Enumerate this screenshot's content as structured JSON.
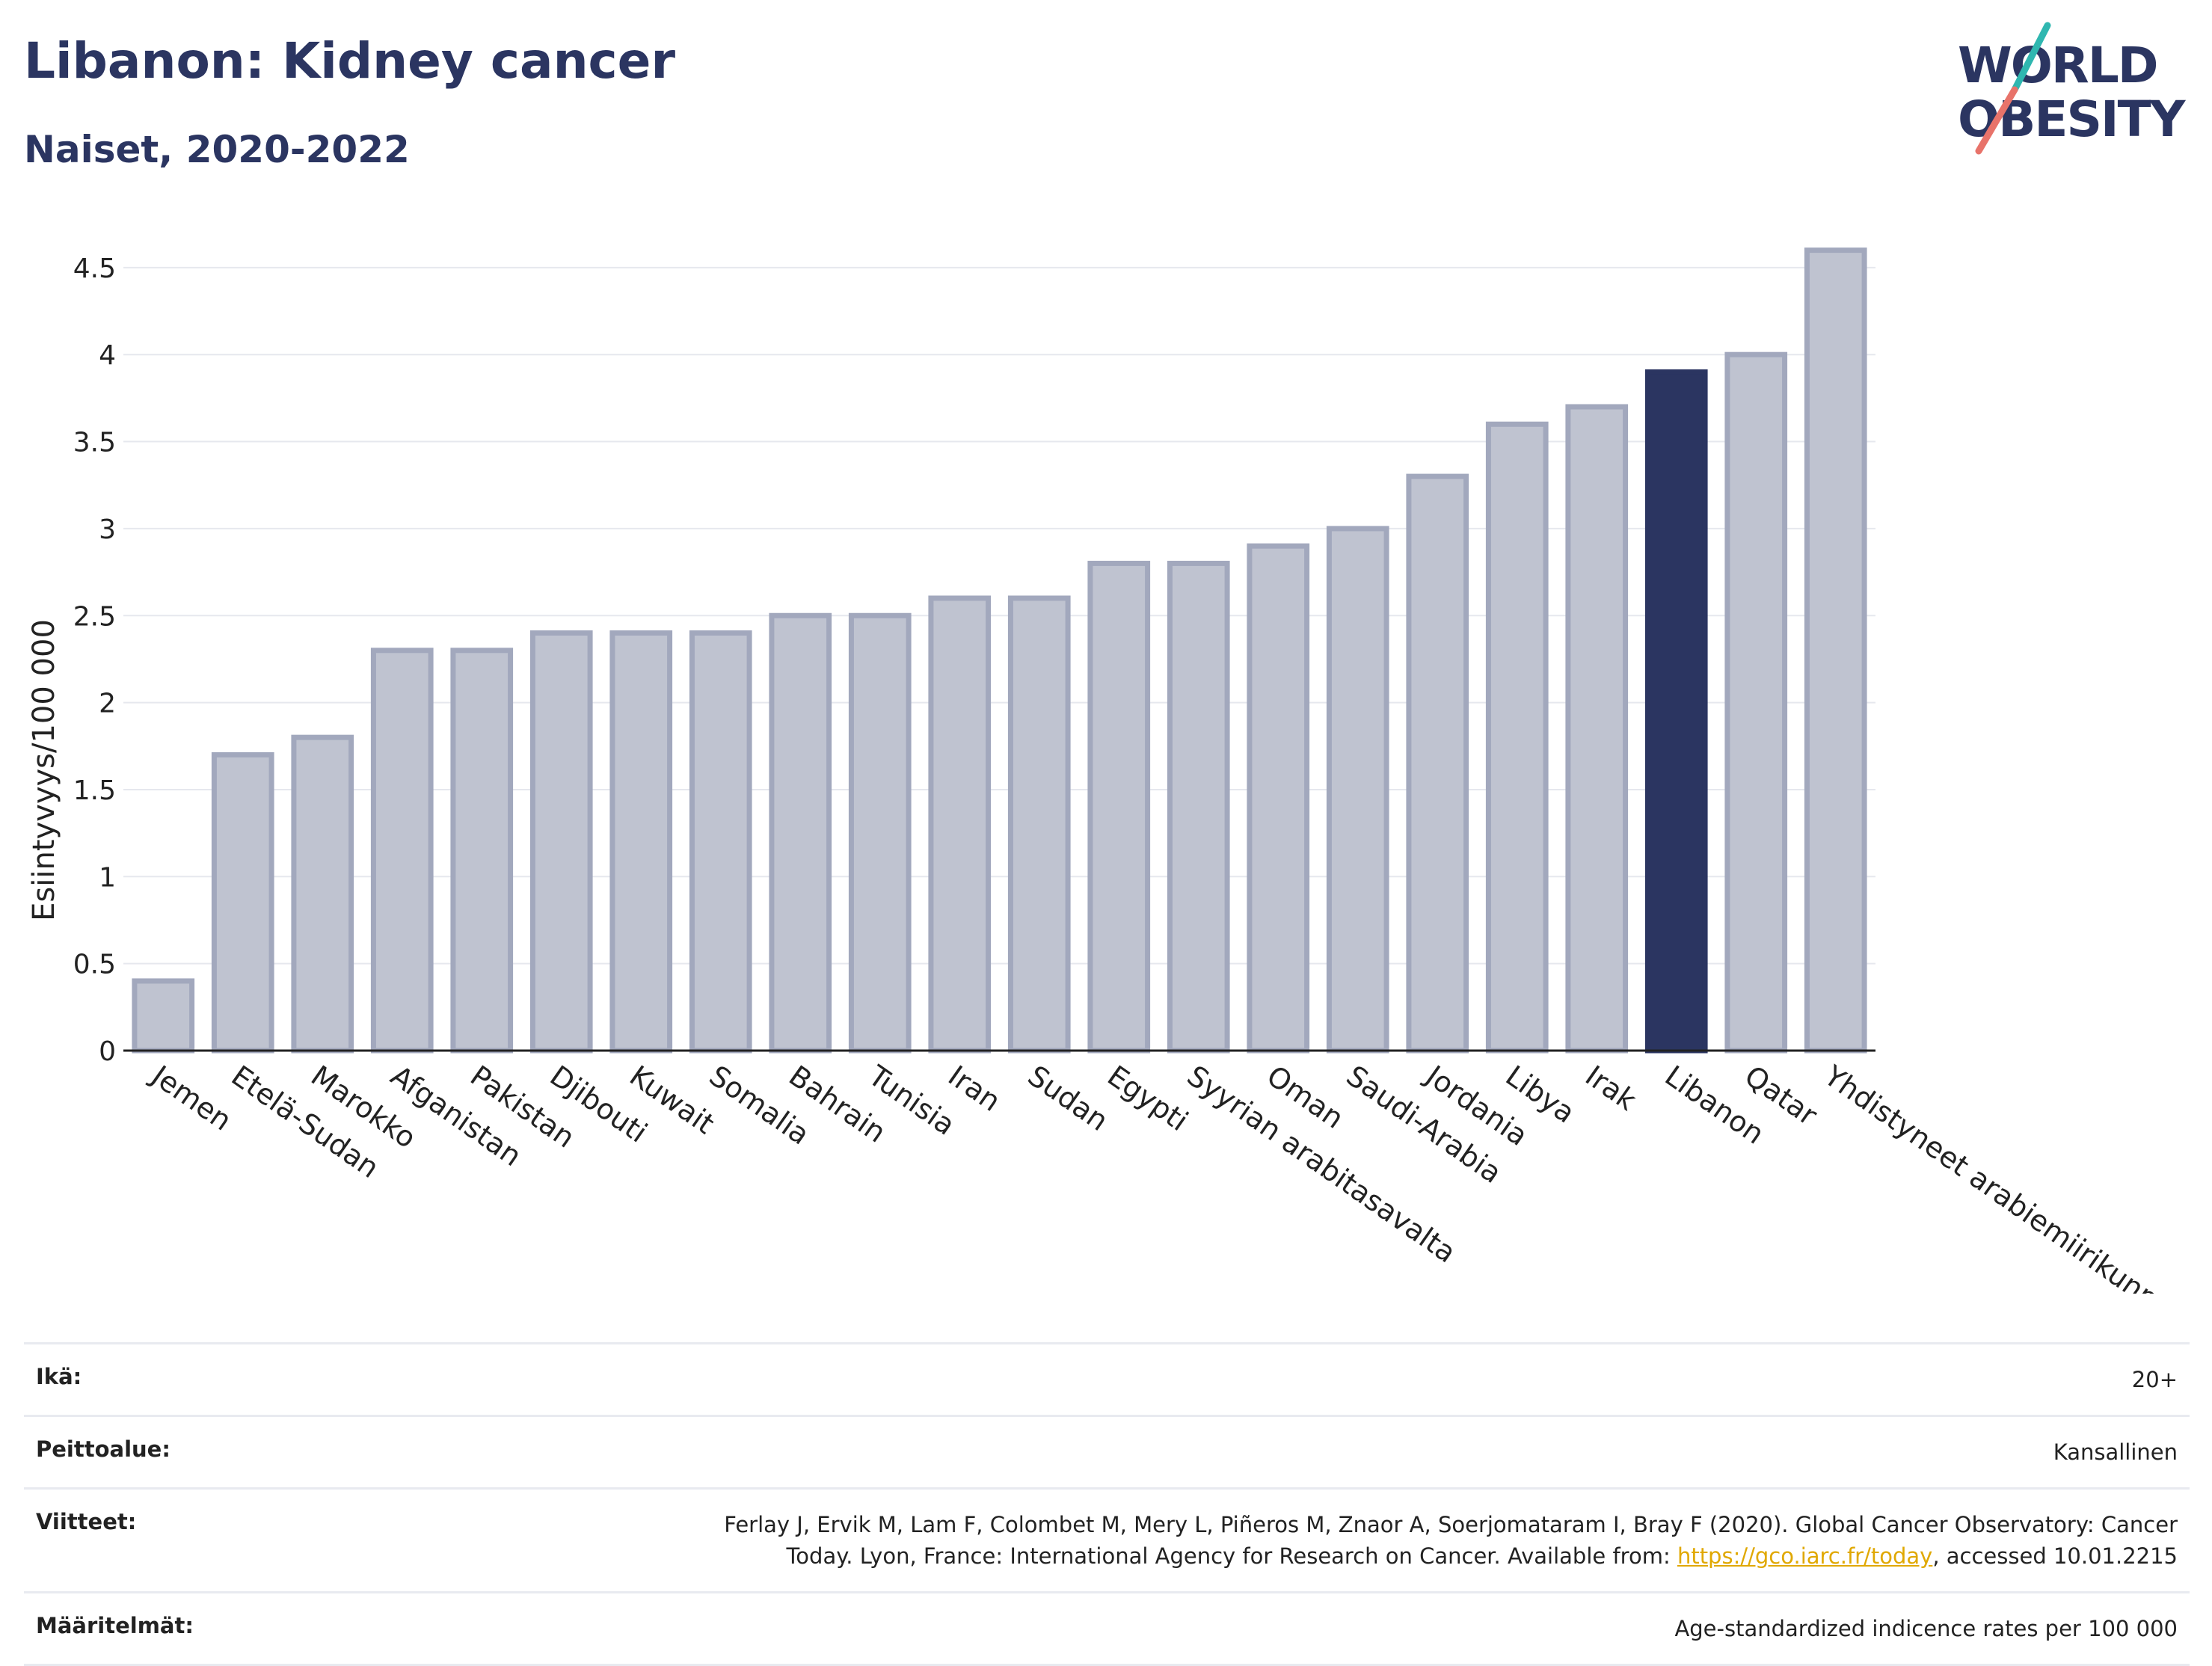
{
  "header": {
    "title": "Libanon: Kidney cancer",
    "subtitle": "Naiset, 2020-2022"
  },
  "logo": {
    "line1": "WORLD",
    "line2": "OBESITY"
  },
  "colors": {
    "highlight": "#2b3561",
    "bar_fill": "#bfc3d0",
    "bar_stroke": "#a2a8bd",
    "accent_teal": "#2fb7b0",
    "accent_coral": "#e8736a"
  },
  "chart_data": {
    "type": "bar",
    "title": "Libanon: Kidney cancer",
    "subtitle": "Naiset, 2020-2022",
    "xlabel": "",
    "ylabel": "Esiintyvyys/100 000",
    "ylim": [
      0,
      4.7
    ],
    "yticks": [
      {
        "value": 0,
        "label": "0"
      },
      {
        "value": 0.5,
        "label": "0.5"
      },
      {
        "value": 1,
        "label": "1"
      },
      {
        "value": 1.5,
        "label": "1.5"
      },
      {
        "value": 2,
        "label": "2"
      },
      {
        "value": 2.5,
        "label": "2.5"
      },
      {
        "value": 3,
        "label": "3"
      },
      {
        "value": 3.5,
        "label": "3.5"
      },
      {
        "value": 4,
        "label": "4"
      },
      {
        "value": 4.5,
        "label": "4.5"
      }
    ],
    "grid": true,
    "highlight": "Libanon",
    "categories": [
      "Jemen",
      "Etelä-Sudan",
      "Marokko",
      "Afganistan",
      "Pakistan",
      "Djibouti",
      "Kuwait",
      "Somalia",
      "Bahrain",
      "Tunisia",
      "Iran",
      "Sudan",
      "Egypti",
      "Syyrian arabitasavalta",
      "Oman",
      "Saudi-Arabia",
      "Jordania",
      "Libya",
      "Irak",
      "Libanon",
      "Qatar",
      "Yhdistyneet arabiemiirikunnat"
    ],
    "values": [
      0.4,
      1.7,
      1.8,
      2.3,
      2.3,
      2.4,
      2.4,
      2.4,
      2.5,
      2.5,
      2.6,
      2.6,
      2.8,
      2.8,
      2.9,
      3.0,
      3.3,
      3.6,
      3.7,
      3.9,
      4.0,
      4.6
    ]
  },
  "info": {
    "age_label": "Ikä:",
    "age_value": "20+",
    "coverage_label": "Peittoalue:",
    "coverage_value": "Kansallinen",
    "refs_label": "Viitteet:",
    "refs_text1": "Ferlay J, Ervik M, Lam F, Colombet M, Mery L, Piñeros M, Znaor A, Soerjomataram I, Bray F (2020). Global Cancer Observatory: Cancer",
    "refs_text2": "Today. Lyon, France: International Agency for Research on Cancer. Available from:",
    "refs_link": "https://gco.iarc.fr/today",
    "refs_text3": ", accessed 10.01.2215",
    "defs_label": "Määritelmät:",
    "defs_value": "Age-standardized indicence rates per 100 000"
  }
}
